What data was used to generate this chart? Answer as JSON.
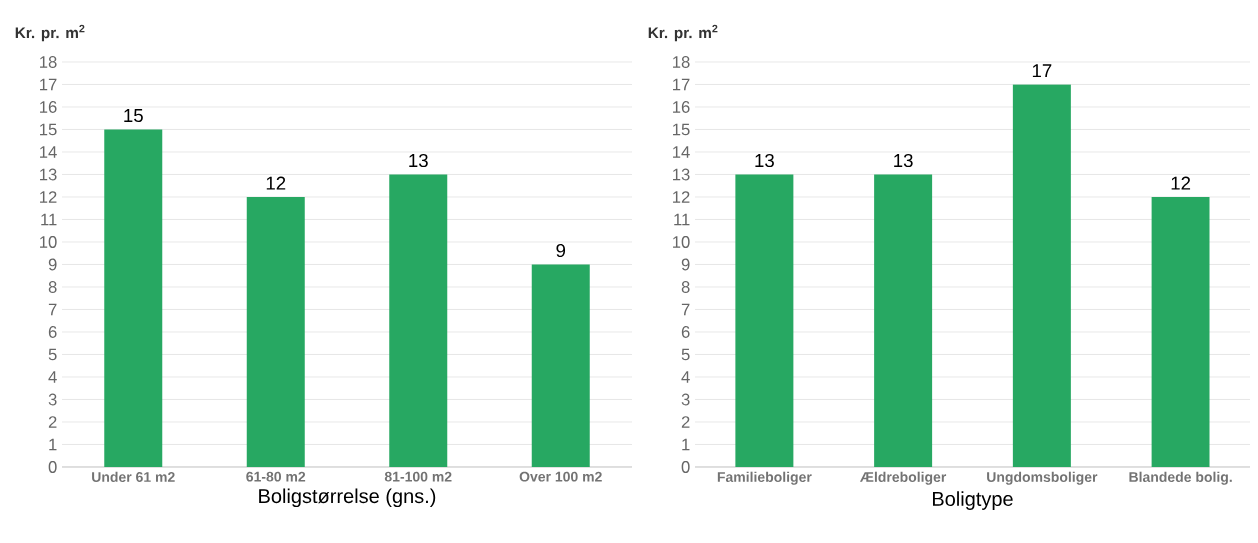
{
  "chart_data": [
    {
      "type": "bar",
      "ylabel": "Kr. pr. m$^{2}$",
      "xlabel": "Boligstørrelse (gns.)",
      "categories": [
        "Under 61 m2",
        "61-80 m2",
        "81-100 m2",
        "Over 100 m2"
      ],
      "values": [
        15,
        12,
        13,
        9
      ],
      "color": "#27a862",
      "ylim": [
        0,
        18
      ],
      "yticks": [
        0,
        1,
        2,
        3,
        4,
        5,
        6,
        7,
        8,
        9,
        10,
        11,
        12,
        13,
        14,
        15,
        16,
        17,
        18
      ],
      "grid": "y",
      "data_labels": true
    },
    {
      "type": "bar",
      "ylabel": "Kr. pr. m$^{2}$",
      "xlabel": "Boligtype",
      "categories": [
        "Familieboliger",
        "Ældreboliger",
        "Ungdomsboliger",
        "Blandede bolig."
      ],
      "values": [
        13,
        13,
        17,
        12
      ],
      "color": "#27a862",
      "ylim": [
        0,
        18
      ],
      "yticks": [
        0,
        1,
        2,
        3,
        4,
        5,
        6,
        7,
        8,
        9,
        10,
        11,
        12,
        13,
        14,
        15,
        16,
        17,
        18
      ],
      "grid": "y",
      "data_labels": true
    }
  ]
}
